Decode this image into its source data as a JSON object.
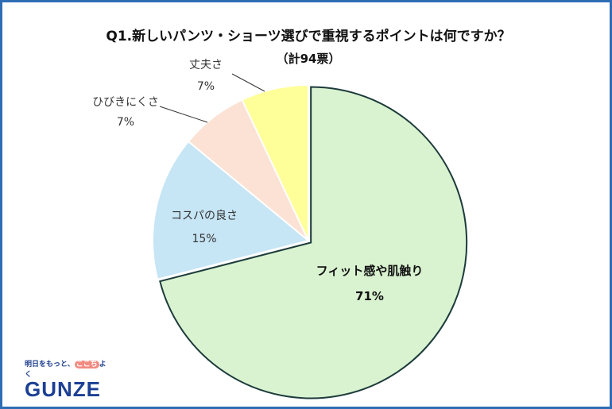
{
  "chart_data": {
    "type": "pie",
    "title": "Q1.新しいパンツ・ショーツ選びで重視するポイントは何ですか？",
    "subtitle": "（計94票）",
    "start": "12 o'clock, clockwise",
    "slices": [
      {
        "label": "フィット感や肌触り",
        "value": 71,
        "value_label": "71%",
        "color": "#d9f2d0"
      },
      {
        "label": "コスパの良さ",
        "value": 15,
        "value_label": "15%",
        "color": "#c6e5f5"
      },
      {
        "label": "ひびきにくさ",
        "value": 7,
        "value_label": "7%",
        "color": "#fbe2d5"
      },
      {
        "label": "丈夫さ",
        "value": 7,
        "value_label": "7%",
        "color": "#ffff99"
      }
    ],
    "stroke_color": "#1d3b3b"
  },
  "logo": {
    "tagline_pre": "明日をもっと、",
    "tagline_heart": "ここち",
    "tagline_post": "よく",
    "brand": "GUNZE"
  }
}
